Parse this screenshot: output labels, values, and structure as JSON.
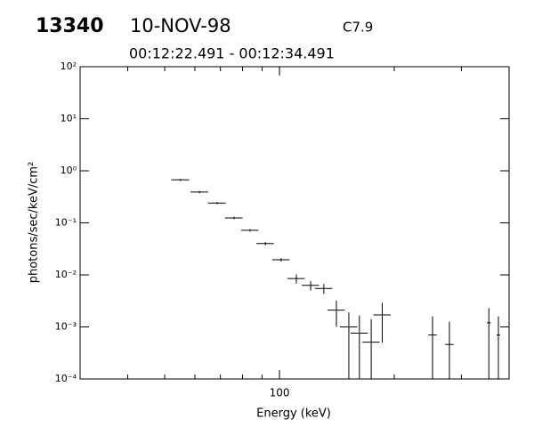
{
  "chart_data": {
    "type": "errorbar",
    "annotations": [
      "13340",
      "10-NOV-98",
      "C7.9",
      "00:12:22.491 - 00:12:34.491"
    ],
    "x_label": "Energy (keV)",
    "y_label": "photons/sec/keV/cm²",
    "log_x": true,
    "log_y": true,
    "color": "#000000",
    "xlim": [
      30,
      400
    ],
    "xticks": [
      100
    ],
    "x_minor_ticks": [
      40,
      50,
      60,
      70,
      80,
      90,
      200,
      300,
      400
    ],
    "ylim": [
      0.0001,
      100
    ],
    "yticks": [
      {
        "value": 0.0001,
        "label": "10⁻⁴"
      },
      {
        "value": 0.001,
        "label": "10⁻³"
      },
      {
        "value": 0.01,
        "label": "10⁻²"
      },
      {
        "value": 0.1,
        "label": "10⁻¹"
      },
      {
        "value": 1,
        "label": "10⁰"
      },
      {
        "value": 10,
        "label": "10¹"
      },
      {
        "value": 100,
        "label": "10²"
      }
    ],
    "x": [
      55,
      61.7,
      68.6,
      76,
      83.7,
      91.8,
      101,
      110.7,
      120.7,
      130.7,
      141,
      152,
      162,
      174,
      186,
      252,
      279,
      354,
      375
    ],
    "xerr": [
      3,
      3.3,
      3.7,
      4,
      4.4,
      4.8,
      5.3,
      5.8,
      6.3,
      6.8,
      7.3,
      7.9,
      8.4,
      9,
      9.7,
      6.5,
      7,
      4,
      4
    ],
    "values": [
      0.67,
      0.39,
      0.24,
      0.124,
      0.072,
      0.04,
      0.0195,
      0.0085,
      0.0063,
      0.0055,
      0.0021,
      0.001,
      0.00076,
      0.00051,
      0.0017,
      0.0007,
      0.00046,
      0.0012,
      0.0007
    ],
    "errors": [
      0.03,
      0.02,
      0.012,
      0.007,
      0.004,
      0.003,
      0.0015,
      0.0017,
      0.0013,
      0.0012,
      0.0011,
      0.0009,
      0.0009,
      0.0009,
      0.0012,
      0.0009,
      0.0008,
      0.0011,
      0.0009
    ]
  }
}
